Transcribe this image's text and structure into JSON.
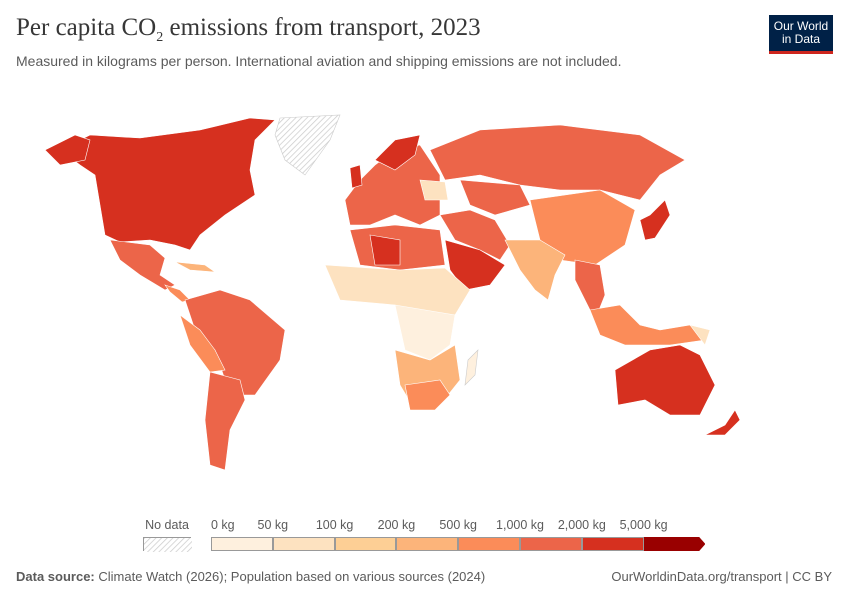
{
  "header": {
    "title_main": "Per capita CO",
    "title_sub": "2",
    "title_rest": " emissions from transport, 2023",
    "subtitle": "Measured in kilograms per person. International aviation and shipping emissions are not included."
  },
  "logo": {
    "line1": "Our World",
    "line2": "in Data",
    "bg": "#002147",
    "accent": "#ce261e"
  },
  "legend": {
    "no_data": "No data",
    "labels": [
      "0 kg",
      "50 kg",
      "100 kg",
      "200 kg",
      "500 kg",
      "1,000 kg",
      "2,000 kg",
      "5,000 kg"
    ],
    "colors": [
      "#fef0de",
      "#fde2c0",
      "#fdcf95",
      "#fcb47a",
      "#fb8c59",
      "#ec6549",
      "#d6301f",
      "#990000"
    ]
  },
  "footer": {
    "source_label": "Data source:",
    "source_text": " Climate Watch (2026); Population based on various sources (2024)",
    "url": "OurWorldinData.org/transport | CC BY"
  }
}
